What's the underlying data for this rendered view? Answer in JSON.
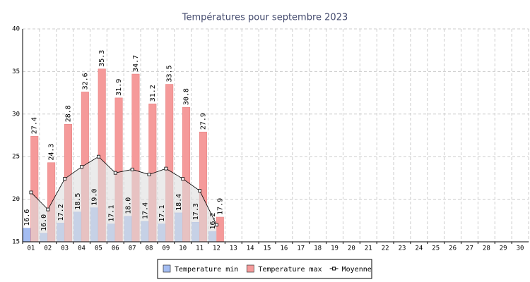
{
  "chart_data": {
    "type": "bar",
    "title": "Températures pour septembre 2023",
    "categories": [
      "01",
      "02",
      "03",
      "04",
      "05",
      "06",
      "07",
      "08",
      "09",
      "10",
      "11",
      "12",
      "13",
      "14",
      "15",
      "16",
      "17",
      "18",
      "19",
      "20",
      "21",
      "22",
      "23",
      "24",
      "25",
      "26",
      "27",
      "28",
      "29",
      "30"
    ],
    "series": [
      {
        "name": "Temperature min",
        "type": "bar",
        "color": "#a4bdf2",
        "stroke": "#7f9ee6",
        "values": [
          16.6,
          16.0,
          17.2,
          18.5,
          19.0,
          17.1,
          18.0,
          17.4,
          17.1,
          18.4,
          17.3,
          16.2,
          null,
          null,
          null,
          null,
          null,
          null,
          null,
          null,
          null,
          null,
          null,
          null,
          null,
          null,
          null,
          null,
          null,
          null
        ],
        "value_labels": [
          "16.6",
          "16.0",
          "17.2",
          "18.5",
          "19.0",
          "17.1",
          "18.0",
          "17.4",
          "17.1",
          "18.4",
          "17.3",
          "16.2",
          null,
          null,
          null,
          null,
          null,
          null,
          null,
          null,
          null,
          null,
          null,
          null,
          null,
          null,
          null,
          null,
          null,
          null
        ]
      },
      {
        "name": "Temperature max",
        "type": "bar",
        "color": "#f59a9a",
        "stroke": "#e57c7c",
        "values": [
          27.4,
          24.3,
          28.8,
          32.6,
          35.3,
          31.9,
          34.7,
          31.2,
          33.5,
          30.8,
          27.9,
          17.9,
          null,
          null,
          null,
          null,
          null,
          null,
          null,
          null,
          null,
          null,
          null,
          null,
          null,
          null,
          null,
          null,
          null,
          null
        ],
        "value_labels": [
          "27.4",
          "24.3",
          "28.8",
          "32.6",
          "35.3",
          "31.9",
          "34.7",
          "31.2",
          "33.5",
          "30.8",
          "27.9",
          "17.9",
          null,
          null,
          null,
          null,
          null,
          null,
          null,
          null,
          null,
          null,
          null,
          null,
          null,
          null,
          null,
          null,
          null,
          null
        ]
      },
      {
        "name": "Moyenne",
        "type": "line",
        "color": "#000000",
        "fill": "#dddddd",
        "values": [
          20.8,
          18.8,
          22.4,
          23.8,
          25.0,
          23.1,
          23.5,
          22.9,
          23.6,
          22.4,
          21.0,
          17.0,
          null,
          null,
          null,
          null,
          null,
          null,
          null,
          null,
          null,
          null,
          null,
          null,
          null,
          null,
          null,
          null,
          null,
          null
        ]
      }
    ],
    "ylim": [
      15,
      40
    ],
    "yticks": [
      15,
      20,
      25,
      30,
      35,
      40
    ],
    "grid": true,
    "legend": "bottom"
  }
}
